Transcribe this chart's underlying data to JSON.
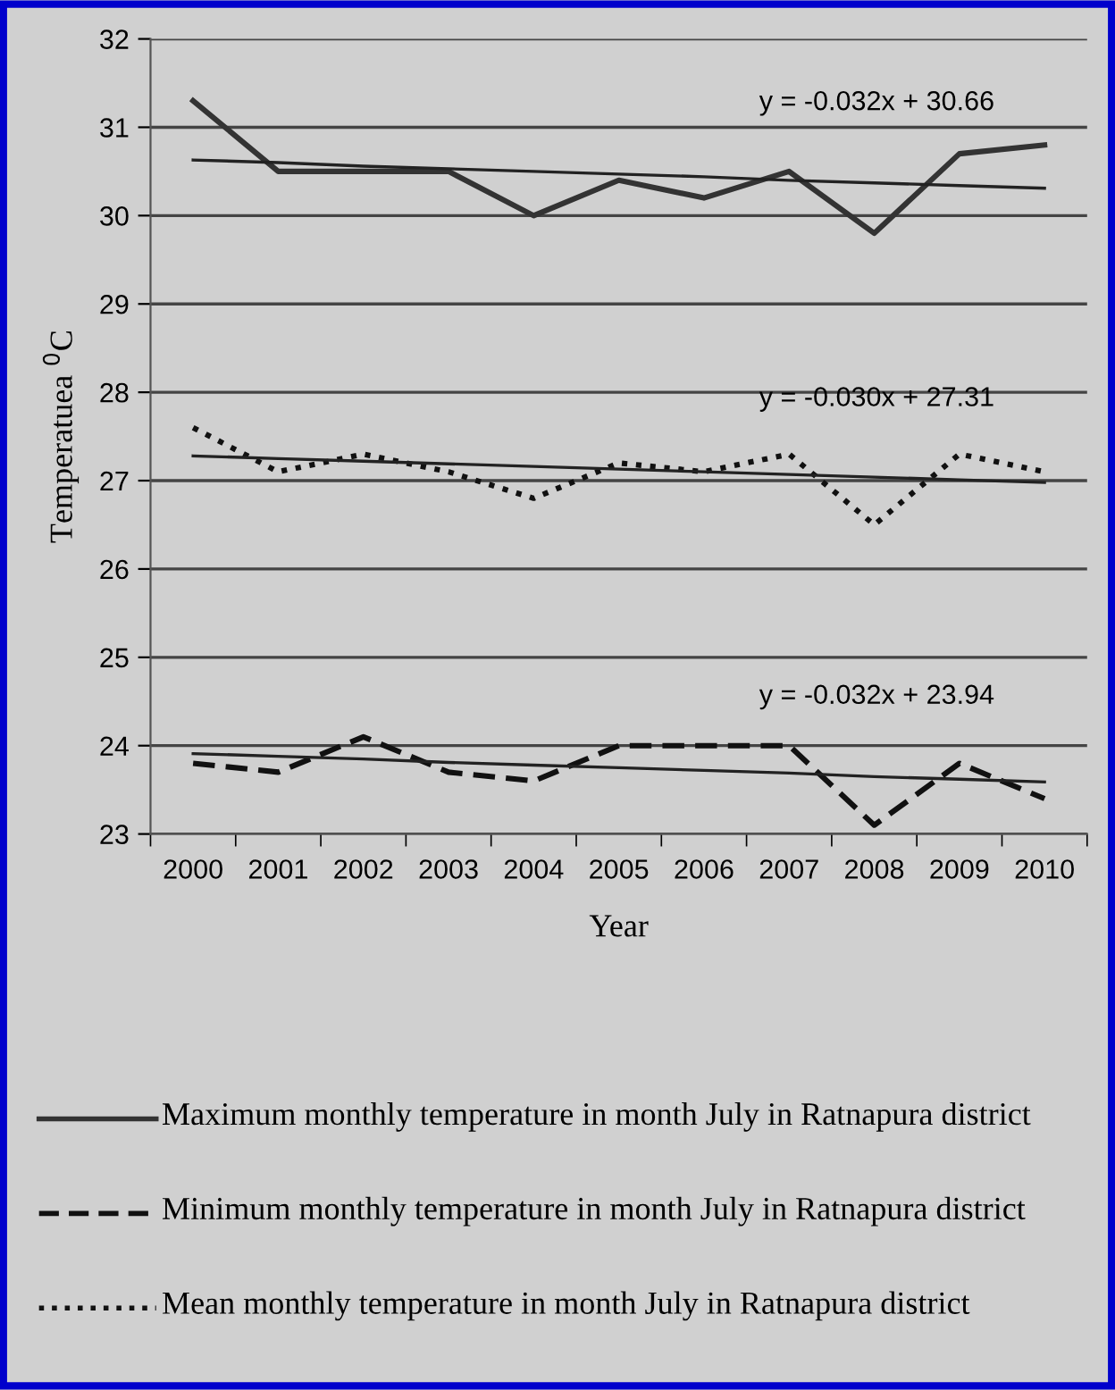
{
  "chart_data": {
    "type": "line",
    "xlabel": "Year",
    "ylabel": "Temperatuea $^{0}$C",
    "categories": [
      "2000",
      "2001",
      "2002",
      "2003",
      "2004",
      "2005",
      "2006",
      "2007",
      "2008",
      "2009",
      "2010"
    ],
    "ylim": [
      23,
      32
    ],
    "yticks": [
      23,
      24,
      25,
      26,
      27,
      28,
      29,
      30,
      31,
      32
    ],
    "grid": "y",
    "legend": "bottom",
    "series": [
      {
        "name": "Maximum monthly temperature in month July in Ratnapura district",
        "color": "#333333",
        "line_style": "solid",
        "values": [
          31.3,
          30.5,
          30.5,
          30.5,
          30.0,
          30.4,
          30.2,
          30.5,
          29.8,
          30.7,
          30.8
        ]
      },
      {
        "name": "Minimum monthly temperature in month July in Ratnapura district",
        "color": "#111111",
        "line_style": "dashed",
        "values": [
          23.8,
          23.7,
          24.1,
          23.7,
          23.6,
          24.0,
          24.0,
          24.0,
          23.1,
          23.8,
          23.4
        ]
      },
      {
        "name": "Mean monthly temperature in month July in Ratnapura district",
        "color": "#111111",
        "line_style": "dotted",
        "values": [
          27.6,
          27.1,
          27.3,
          27.1,
          26.8,
          27.2,
          27.1,
          27.3,
          26.5,
          27.3,
          27.1
        ]
      },
      {
        "color": "#222222",
        "line_style": "solid",
        "values": [
          30.63,
          30.6,
          30.56,
          30.53,
          30.5,
          30.47,
          30.44,
          30.4,
          30.37,
          30.34,
          30.31
        ]
      },
      {
        "color": "#222222",
        "line_style": "solid",
        "values": [
          27.28,
          27.25,
          27.22,
          27.19,
          27.16,
          27.13,
          27.1,
          27.07,
          27.04,
          27.01,
          26.98
        ]
      },
      {
        "color": "#222222",
        "line_style": "solid",
        "values": [
          23.91,
          23.88,
          23.85,
          23.81,
          23.78,
          23.75,
          23.72,
          23.69,
          23.65,
          23.62,
          23.59
        ]
      }
    ],
    "annotations": [
      "y = -0.032x + 30.66",
      "y = -0.030x + 27.31",
      "y = -0.032x + 23.94"
    ]
  }
}
